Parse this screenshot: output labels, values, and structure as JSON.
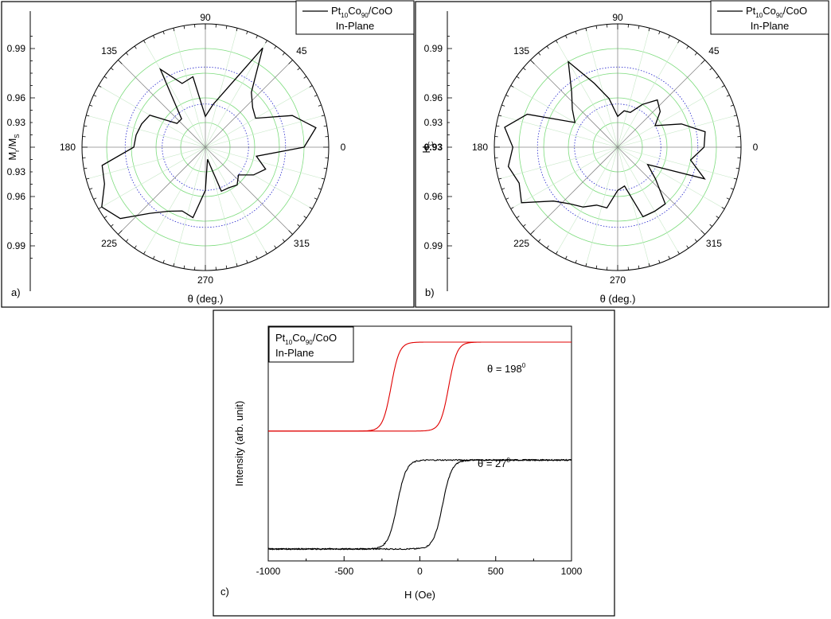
{
  "chart_data": [
    {
      "type": "polar-line",
      "panel_label": "a)",
      "theta_unit": "deg",
      "xlabel": "θ (deg.)",
      "ylabel": "M_r/M_S",
      "angle_ticks": [
        "90",
        "45",
        "0",
        "315",
        "270",
        "225",
        "180",
        "135"
      ],
      "radial_ticks_upper": [
        "0.99",
        "0.96",
        "0.93"
      ],
      "radial_ticks_lower": [
        "0.93",
        "0.96",
        "0.99"
      ],
      "center_label": "180",
      "legend": {
        "compound": "Pt10Co90/CoO",
        "condition": "In-Plane",
        "placement": "top-right"
      },
      "series": [
        {
          "theta": [
            0,
            10,
            20,
            30,
            40,
            50,
            60,
            70,
            80,
            90,
            100,
            110,
            120,
            130,
            140,
            150,
            160,
            170,
            180,
            190,
            200,
            210,
            220,
            230,
            240,
            250,
            260,
            270,
            280,
            290,
            300,
            310,
            320,
            330,
            340,
            350
          ],
          "r": [
            0.8,
            0.91,
            0.75,
            0.47,
            0.5,
            0.58,
            0.93,
            0.5,
            0.35,
            0.25,
            0.58,
            0.55,
            0.73,
            0.3,
            0.3,
            0.52,
            0.55,
            0.57,
            0.58,
            0.85,
            0.87,
            0.97,
            0.9,
            0.7,
            0.6,
            0.55,
            0.58,
            0.35,
            0.1,
            0.38,
            0.38,
            0.4,
            0.35,
            0.45,
            0.52,
            0.42
          ]
        }
      ]
    },
    {
      "type": "polar-line",
      "panel_label": "b)",
      "theta_unit": "deg",
      "xlabel": "θ (deg.)",
      "ylabel": "H_C",
      "angle_ticks": [
        "90",
        "45",
        "0",
        "315",
        "270",
        "225",
        "180",
        "135"
      ],
      "radial_ticks_upper": [
        "0.99",
        "0.96",
        "0.93"
      ],
      "radial_ticks_lower": [
        "0.96",
        "0.99"
      ],
      "center_label": "0.93 180",
      "legend": {
        "compound": "Pt10Co90/CoO",
        "condition": "In-Plane",
        "placement": "top-right"
      },
      "series": [
        {
          "theta": [
            0,
            10,
            20,
            30,
            40,
            50,
            60,
            70,
            80,
            90,
            100,
            110,
            120,
            130,
            140,
            150,
            160,
            170,
            180,
            190,
            200,
            210,
            220,
            230,
            240,
            250,
            260,
            270,
            280,
            290,
            300,
            310,
            320,
            330,
            340,
            350
          ],
          "r": [
            0.7,
            0.72,
            0.55,
            0.35,
            0.45,
            0.5,
            0.4,
            0.3,
            0.3,
            0.25,
            0.4,
            0.55,
            0.8,
            0.58,
            0.48,
            0.4,
            0.78,
            0.93,
            0.85,
            0.9,
            0.85,
            0.9,
            0.68,
            0.6,
            0.56,
            0.5,
            0.5,
            0.35,
            0.32,
            0.6,
            0.6,
            0.6,
            0.4,
            0.28,
            0.75,
            0.6
          ]
        }
      ]
    },
    {
      "type": "line",
      "panel_label": "c)",
      "xlabel": "H (Oe)",
      "ylabel": "Intensity (arb. unit)",
      "xlim": [
        -1000,
        1000
      ],
      "x_ticks": [
        "-1000",
        "-500",
        "0",
        "500",
        "1000"
      ],
      "legend": {
        "compound": "Pt10Co90/CoO",
        "condition": "In-Plane",
        "placement": "top-left"
      },
      "series": [
        {
          "label": "θ = 198⁰",
          "color": "#e00000",
          "coercive_field": 190,
          "half_width": 55,
          "y_min": 0.57,
          "y_max": 1.0,
          "noise": 0
        },
        {
          "label": "θ = 27⁰",
          "color": "#000000",
          "coercive_field": 150,
          "half_width": 60,
          "y_min": 0.0,
          "y_max": 0.43,
          "noise": 0.006
        }
      ]
    }
  ]
}
